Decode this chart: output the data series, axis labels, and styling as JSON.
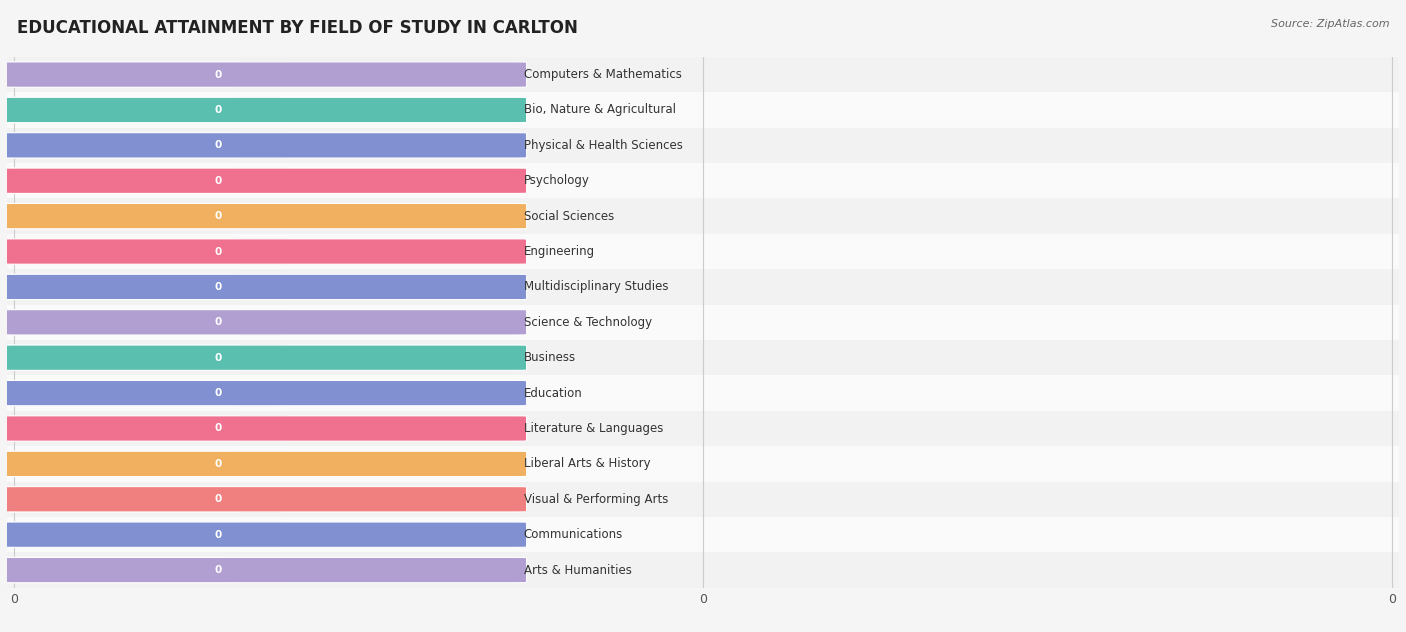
{
  "title": "EDUCATIONAL ATTAINMENT BY FIELD OF STUDY IN CARLTON",
  "source": "Source: ZipAtlas.com",
  "categories": [
    "Computers & Mathematics",
    "Bio, Nature & Agricultural",
    "Physical & Health Sciences",
    "Psychology",
    "Social Sciences",
    "Engineering",
    "Multidisciplinary Studies",
    "Science & Technology",
    "Business",
    "Education",
    "Literature & Languages",
    "Liberal Arts & History",
    "Visual & Performing Arts",
    "Communications",
    "Arts & Humanities"
  ],
  "values": [
    0,
    0,
    0,
    0,
    0,
    0,
    0,
    0,
    0,
    0,
    0,
    0,
    0,
    0,
    0
  ],
  "bar_colors": [
    "#c9b8e8",
    "#7ed4c8",
    "#b8c4e8",
    "#f4a0b0",
    "#f7d59a",
    "#f4a0b0",
    "#b8c4e8",
    "#c9b8e8",
    "#7ed4c8",
    "#b8c4e8",
    "#f4a0b0",
    "#f7d59a",
    "#f4a0b0",
    "#b8c4e8",
    "#c9b8e8"
  ],
  "icon_colors": [
    "#b09fd0",
    "#5bbfb0",
    "#8090d0",
    "#f07090",
    "#f0b060",
    "#f07090",
    "#8090d0",
    "#b09fd0",
    "#5bbfb0",
    "#8090d0",
    "#f07090",
    "#f0b060",
    "#f08080",
    "#8090d0",
    "#b09fd0"
  ],
  "row_bg_odd": "#f2f2f2",
  "row_bg_even": "#fafafa",
  "bg_color": "#f5f5f5",
  "title_fontsize": 12,
  "label_fontsize": 8.5,
  "value_fontsize": 7.5
}
